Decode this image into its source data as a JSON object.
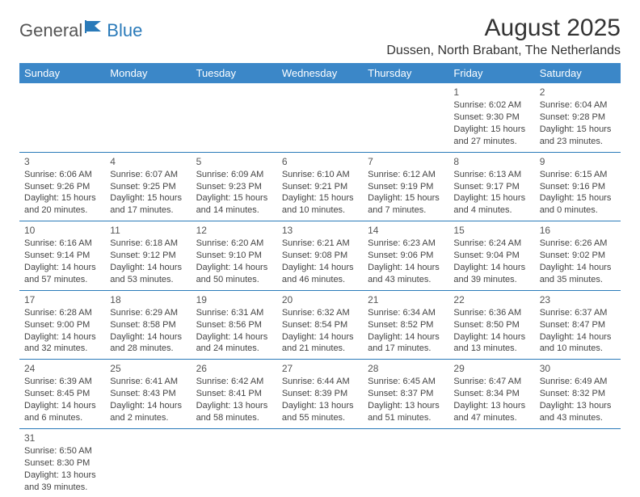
{
  "logo": {
    "part1": "General",
    "part2": "Blue"
  },
  "title": "August 2025",
  "location": "Dussen, North Brabant, The Netherlands",
  "colors": {
    "header_bg": "#3b87c8",
    "header_text": "#ffffff",
    "border": "#2a7ab9",
    "body_text": "#444444",
    "logo_accent": "#2a7ab9"
  },
  "weekdays": [
    "Sunday",
    "Monday",
    "Tuesday",
    "Wednesday",
    "Thursday",
    "Friday",
    "Saturday"
  ],
  "weeks": [
    [
      null,
      null,
      null,
      null,
      null,
      {
        "d": "1",
        "sr": "Sunrise: 6:02 AM",
        "ss": "Sunset: 9:30 PM",
        "dl1": "Daylight: 15 hours",
        "dl2": "and 27 minutes."
      },
      {
        "d": "2",
        "sr": "Sunrise: 6:04 AM",
        "ss": "Sunset: 9:28 PM",
        "dl1": "Daylight: 15 hours",
        "dl2": "and 23 minutes."
      }
    ],
    [
      {
        "d": "3",
        "sr": "Sunrise: 6:06 AM",
        "ss": "Sunset: 9:26 PM",
        "dl1": "Daylight: 15 hours",
        "dl2": "and 20 minutes."
      },
      {
        "d": "4",
        "sr": "Sunrise: 6:07 AM",
        "ss": "Sunset: 9:25 PM",
        "dl1": "Daylight: 15 hours",
        "dl2": "and 17 minutes."
      },
      {
        "d": "5",
        "sr": "Sunrise: 6:09 AM",
        "ss": "Sunset: 9:23 PM",
        "dl1": "Daylight: 15 hours",
        "dl2": "and 14 minutes."
      },
      {
        "d": "6",
        "sr": "Sunrise: 6:10 AM",
        "ss": "Sunset: 9:21 PM",
        "dl1": "Daylight: 15 hours",
        "dl2": "and 10 minutes."
      },
      {
        "d": "7",
        "sr": "Sunrise: 6:12 AM",
        "ss": "Sunset: 9:19 PM",
        "dl1": "Daylight: 15 hours",
        "dl2": "and 7 minutes."
      },
      {
        "d": "8",
        "sr": "Sunrise: 6:13 AM",
        "ss": "Sunset: 9:17 PM",
        "dl1": "Daylight: 15 hours",
        "dl2": "and 4 minutes."
      },
      {
        "d": "9",
        "sr": "Sunrise: 6:15 AM",
        "ss": "Sunset: 9:16 PM",
        "dl1": "Daylight: 15 hours",
        "dl2": "and 0 minutes."
      }
    ],
    [
      {
        "d": "10",
        "sr": "Sunrise: 6:16 AM",
        "ss": "Sunset: 9:14 PM",
        "dl1": "Daylight: 14 hours",
        "dl2": "and 57 minutes."
      },
      {
        "d": "11",
        "sr": "Sunrise: 6:18 AM",
        "ss": "Sunset: 9:12 PM",
        "dl1": "Daylight: 14 hours",
        "dl2": "and 53 minutes."
      },
      {
        "d": "12",
        "sr": "Sunrise: 6:20 AM",
        "ss": "Sunset: 9:10 PM",
        "dl1": "Daylight: 14 hours",
        "dl2": "and 50 minutes."
      },
      {
        "d": "13",
        "sr": "Sunrise: 6:21 AM",
        "ss": "Sunset: 9:08 PM",
        "dl1": "Daylight: 14 hours",
        "dl2": "and 46 minutes."
      },
      {
        "d": "14",
        "sr": "Sunrise: 6:23 AM",
        "ss": "Sunset: 9:06 PM",
        "dl1": "Daylight: 14 hours",
        "dl2": "and 43 minutes."
      },
      {
        "d": "15",
        "sr": "Sunrise: 6:24 AM",
        "ss": "Sunset: 9:04 PM",
        "dl1": "Daylight: 14 hours",
        "dl2": "and 39 minutes."
      },
      {
        "d": "16",
        "sr": "Sunrise: 6:26 AM",
        "ss": "Sunset: 9:02 PM",
        "dl1": "Daylight: 14 hours",
        "dl2": "and 35 minutes."
      }
    ],
    [
      {
        "d": "17",
        "sr": "Sunrise: 6:28 AM",
        "ss": "Sunset: 9:00 PM",
        "dl1": "Daylight: 14 hours",
        "dl2": "and 32 minutes."
      },
      {
        "d": "18",
        "sr": "Sunrise: 6:29 AM",
        "ss": "Sunset: 8:58 PM",
        "dl1": "Daylight: 14 hours",
        "dl2": "and 28 minutes."
      },
      {
        "d": "19",
        "sr": "Sunrise: 6:31 AM",
        "ss": "Sunset: 8:56 PM",
        "dl1": "Daylight: 14 hours",
        "dl2": "and 24 minutes."
      },
      {
        "d": "20",
        "sr": "Sunrise: 6:32 AM",
        "ss": "Sunset: 8:54 PM",
        "dl1": "Daylight: 14 hours",
        "dl2": "and 21 minutes."
      },
      {
        "d": "21",
        "sr": "Sunrise: 6:34 AM",
        "ss": "Sunset: 8:52 PM",
        "dl1": "Daylight: 14 hours",
        "dl2": "and 17 minutes."
      },
      {
        "d": "22",
        "sr": "Sunrise: 6:36 AM",
        "ss": "Sunset: 8:50 PM",
        "dl1": "Daylight: 14 hours",
        "dl2": "and 13 minutes."
      },
      {
        "d": "23",
        "sr": "Sunrise: 6:37 AM",
        "ss": "Sunset: 8:47 PM",
        "dl1": "Daylight: 14 hours",
        "dl2": "and 10 minutes."
      }
    ],
    [
      {
        "d": "24",
        "sr": "Sunrise: 6:39 AM",
        "ss": "Sunset: 8:45 PM",
        "dl1": "Daylight: 14 hours",
        "dl2": "and 6 minutes."
      },
      {
        "d": "25",
        "sr": "Sunrise: 6:41 AM",
        "ss": "Sunset: 8:43 PM",
        "dl1": "Daylight: 14 hours",
        "dl2": "and 2 minutes."
      },
      {
        "d": "26",
        "sr": "Sunrise: 6:42 AM",
        "ss": "Sunset: 8:41 PM",
        "dl1": "Daylight: 13 hours",
        "dl2": "and 58 minutes."
      },
      {
        "d": "27",
        "sr": "Sunrise: 6:44 AM",
        "ss": "Sunset: 8:39 PM",
        "dl1": "Daylight: 13 hours",
        "dl2": "and 55 minutes."
      },
      {
        "d": "28",
        "sr": "Sunrise: 6:45 AM",
        "ss": "Sunset: 8:37 PM",
        "dl1": "Daylight: 13 hours",
        "dl2": "and 51 minutes."
      },
      {
        "d": "29",
        "sr": "Sunrise: 6:47 AM",
        "ss": "Sunset: 8:34 PM",
        "dl1": "Daylight: 13 hours",
        "dl2": "and 47 minutes."
      },
      {
        "d": "30",
        "sr": "Sunrise: 6:49 AM",
        "ss": "Sunset: 8:32 PM",
        "dl1": "Daylight: 13 hours",
        "dl2": "and 43 minutes."
      }
    ],
    [
      {
        "d": "31",
        "sr": "Sunrise: 6:50 AM",
        "ss": "Sunset: 8:30 PM",
        "dl1": "Daylight: 13 hours",
        "dl2": "and 39 minutes."
      },
      null,
      null,
      null,
      null,
      null,
      null
    ]
  ]
}
